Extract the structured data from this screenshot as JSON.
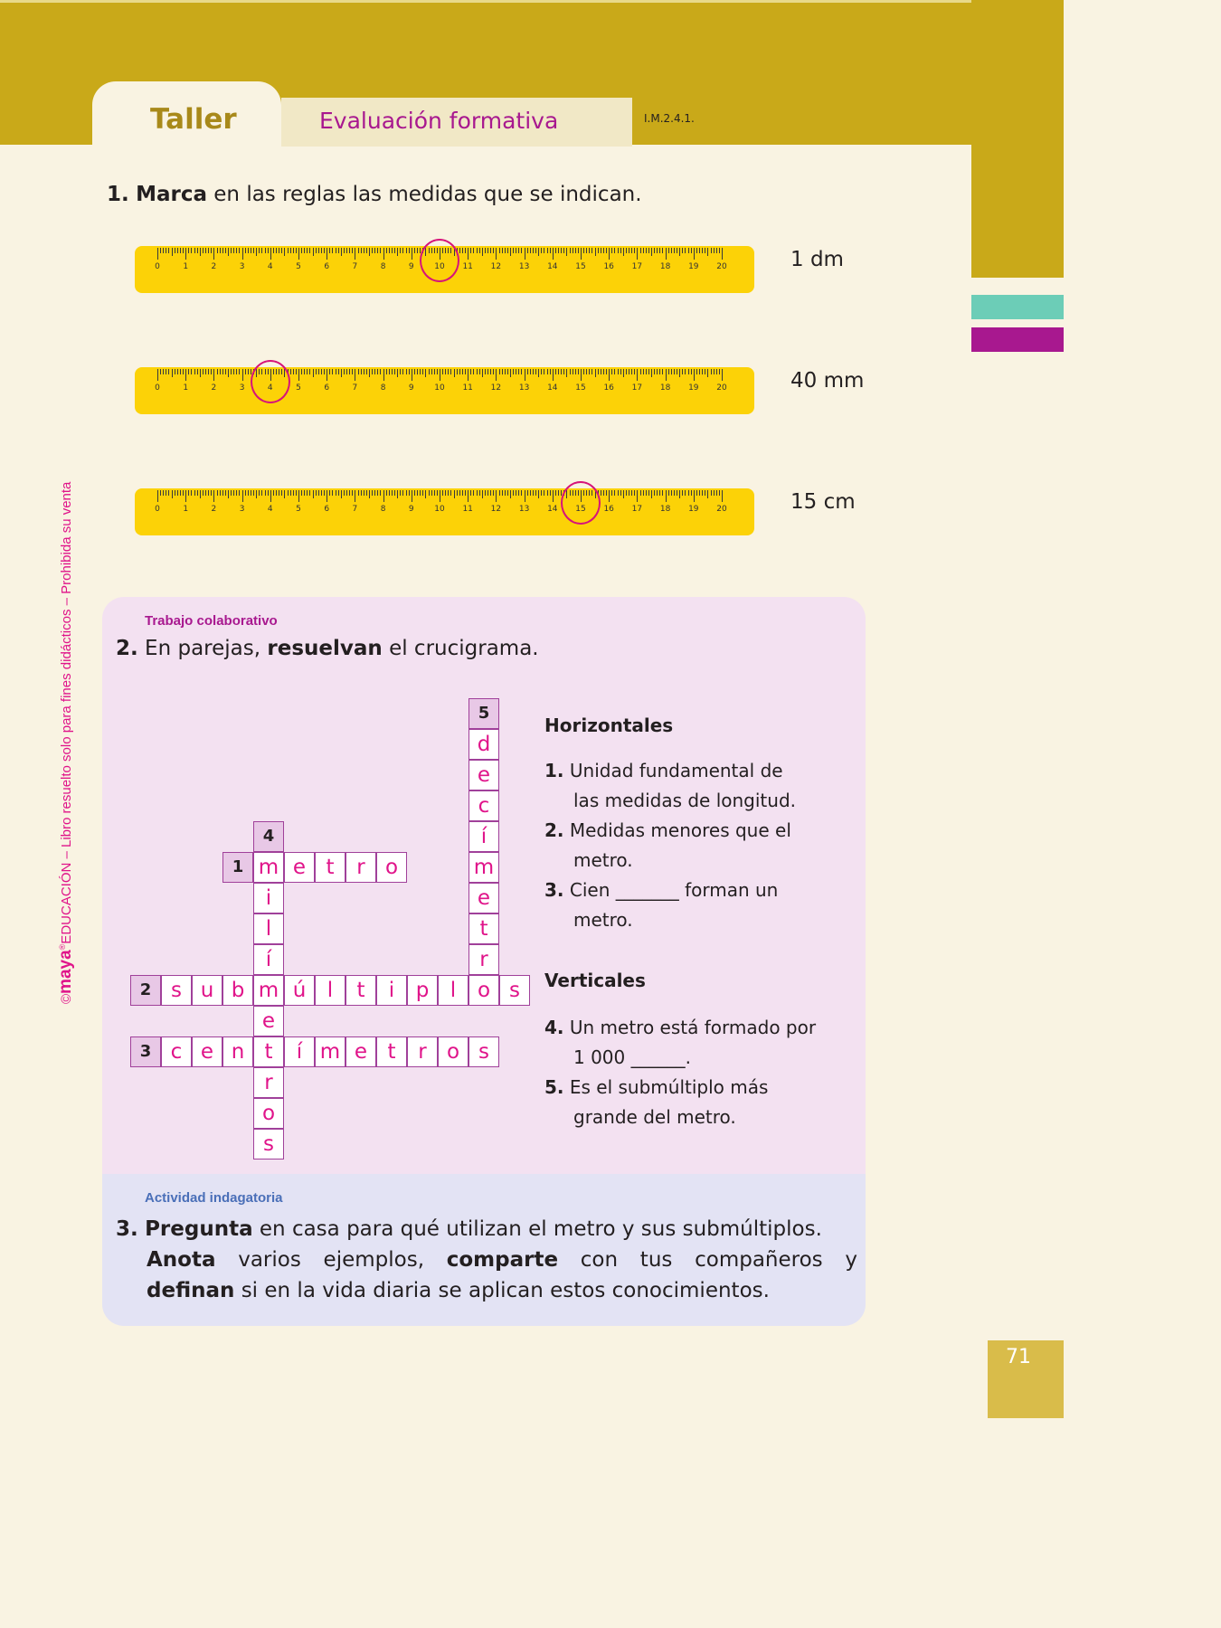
{
  "header": {
    "tab": "Taller",
    "section": "Evaluación formativa",
    "code": "I.M.2.4.1."
  },
  "q1": {
    "number": "1.",
    "verb": "Marca",
    "rest": " en las reglas las medidas que se indican.",
    "rulers": [
      {
        "label": "1 dm",
        "marked_cm": 10
      },
      {
        "label": "40 mm",
        "marked_cm": 4
      },
      {
        "label": "15 cm",
        "marked_cm": 15
      }
    ],
    "ruler_numbers": [
      "0",
      "1",
      "2",
      "3",
      "4",
      "5",
      "6",
      "7",
      "8",
      "9",
      "10",
      "11",
      "12",
      "13",
      "14",
      "15",
      "16",
      "17",
      "18",
      "19",
      "20"
    ]
  },
  "q2": {
    "tag": "Trabajo colaborativo",
    "number": "2.",
    "pre": " En parejas, ",
    "verb": "resuelvan",
    "rest": " el crucigrama.",
    "words": [
      {
        "num": "1",
        "dir": "across",
        "row": 5,
        "col": 3,
        "answer": "metro"
      },
      {
        "num": "2",
        "dir": "across",
        "row": 9,
        "col": 0,
        "answer": "submúltiplos"
      },
      {
        "num": "3",
        "dir": "across",
        "row": 11,
        "col": 0,
        "answer": "centímetros"
      },
      {
        "num": "4",
        "dir": "down",
        "row": 4,
        "col": 4,
        "answer": "milímetros"
      },
      {
        "num": "5",
        "dir": "down",
        "row": 0,
        "col": 11,
        "answer": "decímetro"
      }
    ],
    "horizontales_title": "Horizontales",
    "h1_num": "1.",
    "h1a": " Unidad fundamental de",
    "h1b": "las medidas de longitud.",
    "h2_num": "2.",
    "h2a": " Medidas menores que el",
    "h2b": "metro.",
    "h3_num": "3.",
    "h3a": " Cien _______ forman un",
    "h3b": "metro.",
    "verticales_title": "Verticales",
    "v4_num": "4.",
    "v4a": " Un metro está formado por",
    "v4b": "1 000 ______.",
    "v5_num": "5.",
    "v5a": " Es el submúltiplo más",
    "v5b": "grande del metro."
  },
  "q3": {
    "tag": "Actividad indagatoria",
    "number": "3.",
    "v1": "Pregunta",
    "t1": " en casa para qué utilizan el metro y sus submúltiplos.",
    "v2": "Anota",
    "t2": " varios ejemplos, ",
    "v3": "comparte",
    "t3": " con tus compañeros y",
    "v4": "definan",
    "t4": " si en la vida diaria se aplican estos conocimientos."
  },
  "sidebar": {
    "brand": "maya",
    "text": "EDUCACIÓN – Libro resuelto solo para fines didácticos  – Prohibida su venta",
    "copyright": "©",
    "registered": "®"
  },
  "page_number": "71",
  "colors": {
    "gold": "#c9a919",
    "magenta": "#a8188f",
    "pink_answer": "#e0148a",
    "teal": "#6ccdb7",
    "ruler": "#fcd207"
  }
}
